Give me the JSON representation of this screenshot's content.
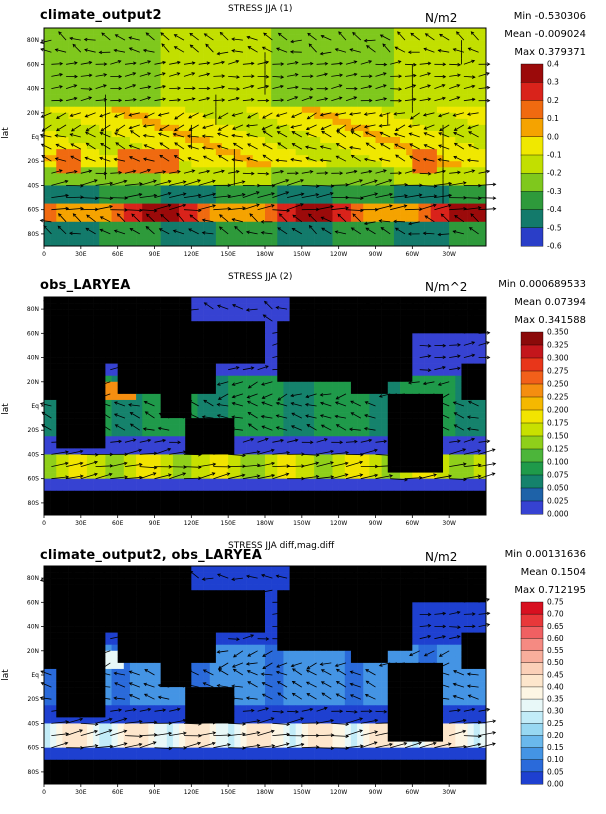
{
  "panels": [
    {
      "name": "climate_output2",
      "title": "STRESS JJA (1)",
      "units": "N/m2",
      "stats": [
        "Min -0.530306",
        "Mean -0.009024",
        "Max 0.379371"
      ],
      "lat_axis_label": "lat",
      "colorbar": {
        "labels": [
          "0.4",
          "0.3",
          "0.2",
          "0.1",
          "0.0",
          "-0.1",
          "-0.2",
          "-0.3",
          "-0.4",
          "-0.5",
          "-0.6"
        ],
        "colors": [
          "#9b0a0a",
          "#d9231b",
          "#f06a10",
          "#f5a300",
          "#f0e800",
          "#c2df00",
          "#7fc81d",
          "#2e9a3b",
          "#137a6b",
          "#2a3ec8",
          "#9a2bf0"
        ]
      }
    },
    {
      "name": "obs_LARYEA",
      "title": "STRESS JJA (2)",
      "units": "N/m^2",
      "stats": [
        "Min 0.000689533",
        "Mean 0.07394",
        "Max 0.341588"
      ],
      "lat_axis_label": "lat",
      "colorbar": {
        "labels": [
          "0.350",
          "0.325",
          "0.300",
          "0.275",
          "0.250",
          "0.225",
          "0.200",
          "0.175",
          "0.150",
          "0.125",
          "0.100",
          "0.075",
          "0.050",
          "0.025",
          "0.000"
        ],
        "colors": [
          "#8b0a0a",
          "#c4161c",
          "#e8361a",
          "#f2601a",
          "#f58e10",
          "#f5b800",
          "#f2e400",
          "#c8e000",
          "#8fcf1a",
          "#4cb53a",
          "#1f9a4a",
          "#15826c",
          "#1e62a8",
          "#3642d2",
          "#8a2cf2"
        ]
      }
    },
    {
      "name": "climate_output2, obs_LARYEA",
      "title": "STRESS JJA diff,mag.diff",
      "units": "N/m2",
      "stats": [
        "Min 0.00131636",
        "Mean 0.1504",
        "Max 0.712195"
      ],
      "lat_axis_label": "lat",
      "colorbar": {
        "labels": [
          "0.75",
          "0.70",
          "0.65",
          "0.60",
          "0.55",
          "0.50",
          "0.45",
          "0.40",
          "0.35",
          "0.30",
          "0.25",
          "0.20",
          "0.15",
          "0.10",
          "0.05",
          "0.00"
        ],
        "colors": [
          "#d81020",
          "#e8383a",
          "#f06062",
          "#f58a82",
          "#f8ae9c",
          "#fbd0b8",
          "#fde6cc",
          "#fdf6e4",
          "#e8f8f8",
          "#c2ecf8",
          "#98d8f2",
          "#6ab8ec",
          "#4494e4",
          "#2a6ada",
          "#1e40d0",
          "#1010c8"
        ]
      }
    }
  ],
  "axes": {
    "lat_ticks_a": [
      "80N",
      "60N",
      "40N",
      "20N",
      "Eq",
      "20S",
      "40S",
      "60S",
      "80S"
    ],
    "lat_ticks_b": [
      "80N",
      "60N",
      "40N",
      "20N",
      "Eq",
      "20S",
      "40S",
      "60S",
      "80S"
    ],
    "lon_ticks": [
      "0",
      "30E",
      "60E",
      "90E",
      "120E",
      "150E",
      "180W",
      "150W",
      "120W",
      "90W",
      "60W",
      "30W"
    ]
  },
  "chart_data": {
    "type": "heatmap",
    "description_free": true,
    "panels": [
      {
        "title": "STRESS JJA (1)",
        "label": "climate_output2",
        "units": "N/m2",
        "min": -0.530306,
        "mean": -0.009024,
        "max": 0.379371,
        "scale_range": [
          -0.6,
          0.4
        ]
      },
      {
        "title": "STRESS JJA (2)",
        "label": "obs_LARYEA",
        "units": "N/m^2",
        "min": 0.000689533,
        "mean": 0.07394,
        "max": 0.341588,
        "scale_range": [
          0.0,
          0.35
        ]
      },
      {
        "title": "STRESS JJA diff,mag.diff",
        "label": "climate_output2, obs_LARYEA",
        "units": "N/m2",
        "min": 0.00131636,
        "mean": 0.1504,
        "max": 0.712195,
        "scale_range": [
          0.0,
          0.75
        ]
      }
    ],
    "x_range": [
      0,
      360
    ],
    "y_range": [
      -90,
      90
    ]
  }
}
